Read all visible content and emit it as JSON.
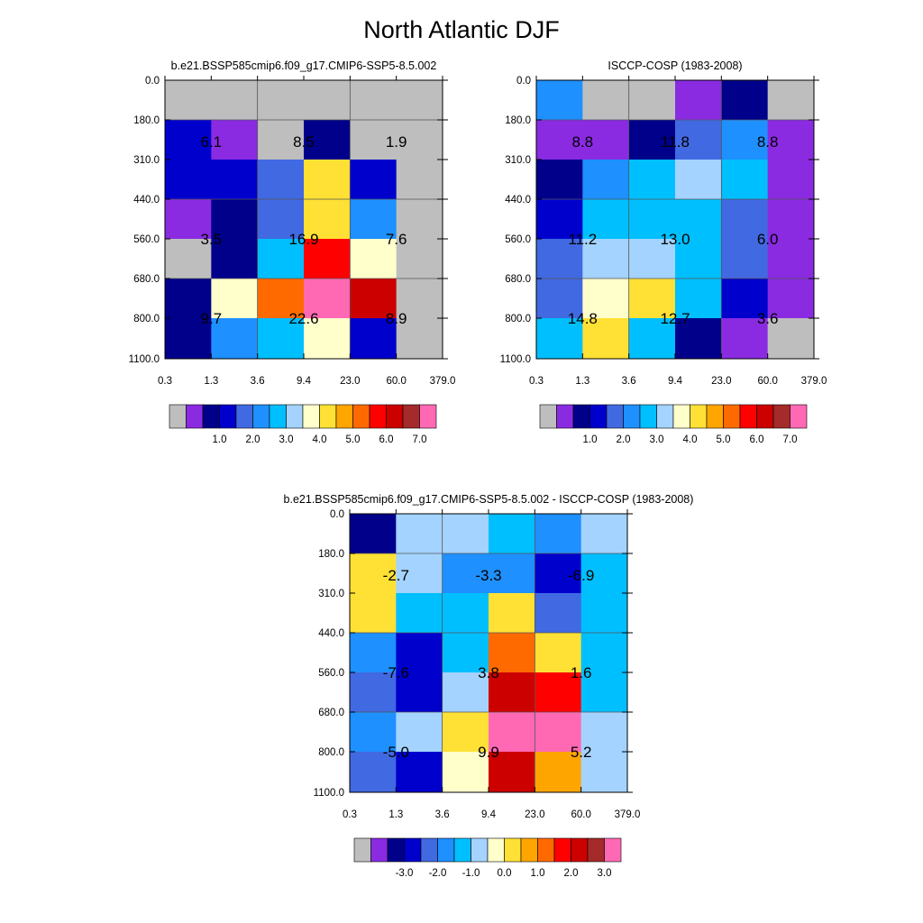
{
  "title": "North Atlantic DJF",
  "color_table": [
    "#bebebe",
    "#8a2be2",
    "#00008b",
    "#0000cd",
    "#4169e1",
    "#1e90ff",
    "#00bfff",
    "#a4d3ff",
    "#ffffcc",
    "#ffe135",
    "#ffa500",
    "#ff6a00",
    "#ff0000",
    "#cd0000",
    "#a52a2a",
    "#ff69b4"
  ],
  "chart_data": [
    {
      "type": "heatmap",
      "title": "b.e21.BSSP585cmip6.f09_g17.CMIP6-SSP5-8.5.002",
      "x_ticks": [
        "0.3",
        "1.3",
        "3.6",
        "9.4",
        "23.0",
        "60.0",
        "379.0"
      ],
      "y_ticks": [
        "0.0",
        "180.0",
        "310.0",
        "440.0",
        "560.0",
        "680.0",
        "800.0",
        "1100.0"
      ],
      "cells": [
        [
          0,
          0,
          0,
          0,
          0,
          0
        ],
        [
          3,
          1,
          0,
          2,
          0,
          0
        ],
        [
          3,
          3,
          4,
          9,
          3,
          0
        ],
        [
          1,
          2,
          4,
          9,
          5,
          0
        ],
        [
          0,
          2,
          6,
          12,
          8,
          0
        ],
        [
          2,
          8,
          11,
          15,
          13,
          0
        ],
        [
          2,
          5,
          6,
          8,
          3,
          0
        ]
      ],
      "block_labels": [
        {
          "row": 0,
          "col": 0,
          "text": "6.1"
        },
        {
          "row": 0,
          "col": 1,
          "text": "8.5"
        },
        {
          "row": 0,
          "col": 2,
          "text": "1.9"
        },
        {
          "row": 1,
          "col": 0,
          "text": "3.5"
        },
        {
          "row": 1,
          "col": 1,
          "text": "16.9"
        },
        {
          "row": 1,
          "col": 2,
          "text": "7.6"
        },
        {
          "row": 2,
          "col": 0,
          "text": "9.7"
        },
        {
          "row": 2,
          "col": 1,
          "text": "22.6"
        },
        {
          "row": 2,
          "col": 2,
          "text": "8.9"
        }
      ],
      "colorbar_labels": [
        "1.0",
        "2.0",
        "3.0",
        "4.0",
        "5.0",
        "6.0",
        "7.0"
      ]
    },
    {
      "type": "heatmap",
      "title": "ISCCP-COSP (1983-2008)",
      "x_ticks": [
        "0.3",
        "1.3",
        "3.6",
        "9.4",
        "23.0",
        "60.0",
        "379.0"
      ],
      "y_ticks": [
        "0.0",
        "180.0",
        "310.0",
        "440.0",
        "560.0",
        "680.0",
        "800.0",
        "1100.0"
      ],
      "cells": [
        [
          5,
          0,
          0,
          1,
          2,
          0
        ],
        [
          1,
          1,
          2,
          4,
          5,
          1
        ],
        [
          2,
          5,
          6,
          7,
          6,
          1
        ],
        [
          3,
          6,
          6,
          6,
          4,
          1
        ],
        [
          4,
          7,
          7,
          6,
          4,
          1
        ],
        [
          4,
          8,
          9,
          6,
          3,
          1
        ],
        [
          6,
          9,
          6,
          2,
          1,
          0
        ]
      ],
      "block_labels": [
        {
          "row": 0,
          "col": 0,
          "text": "8.8"
        },
        {
          "row": 0,
          "col": 1,
          "text": "11.8"
        },
        {
          "row": 0,
          "col": 2,
          "text": "8.8"
        },
        {
          "row": 1,
          "col": 0,
          "text": "11.2"
        },
        {
          "row": 1,
          "col": 1,
          "text": "13.0"
        },
        {
          "row": 1,
          "col": 2,
          "text": "6.0"
        },
        {
          "row": 2,
          "col": 0,
          "text": "14.8"
        },
        {
          "row": 2,
          "col": 1,
          "text": "12.7"
        },
        {
          "row": 2,
          "col": 2,
          "text": "3.6"
        }
      ],
      "colorbar_labels": [
        "1.0",
        "2.0",
        "3.0",
        "4.0",
        "5.0",
        "6.0",
        "7.0"
      ]
    },
    {
      "type": "heatmap",
      "title": "b.e21.BSSP585cmip6.f09_g17.CMIP6-SSP5-8.5.002 - ISCCP-COSP (1983-2008)",
      "x_ticks": [
        "0.3",
        "1.3",
        "3.6",
        "9.4",
        "23.0",
        "60.0",
        "379.0"
      ],
      "y_ticks": [
        "0.0",
        "180.0",
        "310.0",
        "440.0",
        "560.0",
        "680.0",
        "800.0",
        "1100.0"
      ],
      "cells": [
        [
          2,
          7,
          7,
          6,
          5,
          7
        ],
        [
          9,
          7,
          5,
          5,
          3,
          6
        ],
        [
          9,
          6,
          6,
          9,
          4,
          6
        ],
        [
          5,
          3,
          6,
          11,
          9,
          6
        ],
        [
          4,
          3,
          7,
          13,
          12,
          6
        ],
        [
          5,
          7,
          9,
          15,
          15,
          7
        ],
        [
          4,
          3,
          8,
          13,
          10,
          7
        ]
      ],
      "block_labels": [
        {
          "row": 0,
          "col": 0,
          "text": "-2.7"
        },
        {
          "row": 0,
          "col": 1,
          "text": "-3.3"
        },
        {
          "row": 0,
          "col": 2,
          "text": "-6.9"
        },
        {
          "row": 1,
          "col": 0,
          "text": "-7.6"
        },
        {
          "row": 1,
          "col": 1,
          "text": "3.8"
        },
        {
          "row": 1,
          "col": 2,
          "text": "1.6"
        },
        {
          "row": 2,
          "col": 0,
          "text": "-5.0"
        },
        {
          "row": 2,
          "col": 1,
          "text": "9.9"
        },
        {
          "row": 2,
          "col": 2,
          "text": "5.2"
        }
      ],
      "colorbar_labels": [
        "-3.0",
        "-2.0",
        "-1.0",
        "0.0",
        "1.0",
        "2.0",
        "3.0"
      ]
    }
  ]
}
